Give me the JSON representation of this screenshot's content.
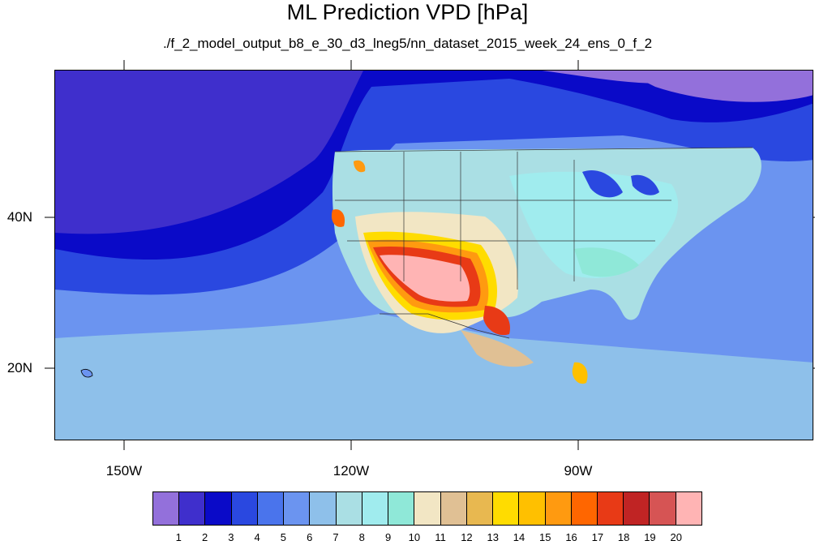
{
  "title": "ML Prediction VPD [hPa]",
  "subtitle": "./f_2_model_output_b8_e_30_d3_lneg5/nn_dataset_2015_week_24_ens_0_f_2",
  "lon_labels": [
    "150W",
    "120W",
    "90W"
  ],
  "lat_labels": [
    "40N",
    "20N"
  ],
  "colorbar": {
    "labels": [
      "1",
      "2",
      "3",
      "4",
      "5",
      "6",
      "7",
      "8",
      "9",
      "10",
      "11",
      "12",
      "13",
      "14",
      "15",
      "16",
      "17",
      "18",
      "19",
      "20"
    ],
    "colors": [
      "#9370db",
      "#3f2fcc",
      "#0a0ac8",
      "#2a48e0",
      "#4a74ec",
      "#6b94f0",
      "#8ec0ea",
      "#aadfe4",
      "#a0ecee",
      "#8fe8d8",
      "#f2e6c4",
      "#e0c094",
      "#e8b850",
      "#ffdc00",
      "#ffc000",
      "#ff9a10",
      "#ff6600",
      "#e83a16",
      "#c02424",
      "#d65454",
      "#ffb4b4"
    ]
  },
  "map_colors": {
    "ocean_deep": "#3f2fcc",
    "ocean_dark": "#0a0ac8",
    "ocean_mid": "#2a48e0",
    "ocean_light": "#6b94f0",
    "ocean_pale": "#8ec0ea",
    "land_pale": "#aadfe4",
    "land_cyan": "#a0ecee",
    "land_mint": "#8fe8d8",
    "arid_tan": "#f2e6c4",
    "arid_yellow": "#ffdc00",
    "arid_orange": "#ff9a10",
    "arid_red": "#e83a16",
    "arid_pink": "#ffb4b4",
    "border": "#333333"
  }
}
